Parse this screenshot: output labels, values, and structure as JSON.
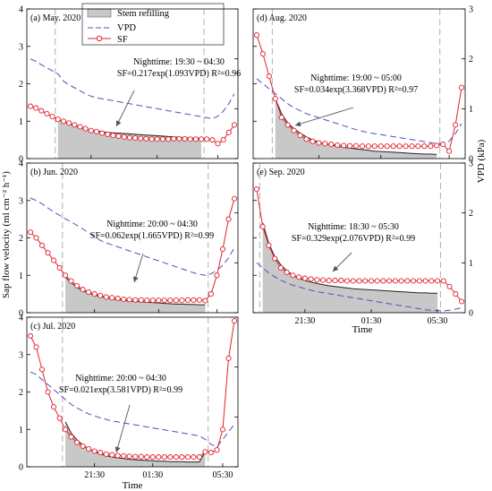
{
  "figure": {
    "y_left_label": "Sap flow velocity (ml cm⁻² h⁻¹)",
    "y_right_label": "VPD (kPa)",
    "x_label": "Time",
    "x_ticks": [
      "21:30",
      "01:30",
      "05:30"
    ],
    "legend": {
      "refill": "Stem refilling",
      "vpd": "VPD",
      "sf": "SF"
    },
    "colors": {
      "vpd": "#5050b8",
      "sf": "#e0202a",
      "refill_fill": "#c8c8c8",
      "night_boundary": "#b0b0b0"
    }
  },
  "chart_data": [
    {
      "type": "line",
      "panel": "(a) May. 2020",
      "night_text": "Nighttime: 19:30 ~ 04:30",
      "equation": "SF=0.217exp(1.093VPD)  R²=0.96",
      "y_left_lim": [
        0,
        4
      ],
      "y_right_lim": [
        0,
        3
      ],
      "night_start": 4.5,
      "night_end": 31.5,
      "x_count": 38,
      "series": [
        {
          "name": "VPD",
          "axis": "right",
          "values": [
            2.0,
            1.95,
            1.88,
            1.82,
            1.76,
            1.7,
            1.55,
            1.48,
            1.42,
            1.36,
            1.3,
            1.25,
            1.22,
            1.2,
            1.18,
            1.16,
            1.14,
            1.12,
            1.1,
            1.08,
            1.06,
            1.04,
            1.02,
            1.0,
            0.98,
            0.96,
            0.94,
            0.92,
            0.9,
            0.88,
            0.86,
            0.84,
            0.82,
            0.8,
            0.85,
            0.95,
            1.1,
            1.3
          ]
        },
        {
          "name": "SF",
          "axis": "left",
          "values": [
            1.4,
            1.35,
            1.28,
            1.2,
            1.12,
            1.05,
            1.0,
            0.95,
            0.9,
            0.85,
            0.8,
            0.75,
            0.72,
            0.68,
            0.65,
            0.62,
            0.6,
            0.58,
            0.56,
            0.55,
            0.54,
            0.53,
            0.52,
            0.52,
            0.52,
            0.52,
            0.53,
            0.53,
            0.53,
            0.52,
            0.52,
            0.52,
            0.52,
            0.5,
            0.4,
            0.5,
            0.7,
            0.9
          ]
        },
        {
          "name": "SF fit",
          "axis": "left",
          "values": [
            1.22,
            1.2,
            1.16,
            1.12,
            1.08,
            1.04,
            0.99,
            0.93,
            0.88,
            0.83,
            0.79,
            0.76,
            0.74,
            0.72,
            0.7,
            0.69,
            0.68,
            0.67,
            0.66,
            0.65,
            0.64,
            0.63,
            0.62,
            0.61,
            0.6,
            0.59,
            0.58,
            0.57,
            0.56,
            0.55,
            0.55,
            0.54,
            0.54,
            0.54,
            0.56,
            0.6,
            0.7,
            0.9
          ]
        }
      ]
    },
    {
      "type": "line",
      "panel": "(b) Jun. 2020",
      "night_text": "Nighttime: 20:00 ~ 04:30",
      "equation": "SF=0.062exp(1.665VPD)  R²=0.99",
      "y_left_lim": [
        0,
        4
      ],
      "y_right_lim": [
        0,
        3
      ],
      "night_start": 5.5,
      "night_end": 30.5,
      "x_count": 36,
      "series": [
        {
          "name": "VPD",
          "axis": "right",
          "values": [
            2.3,
            2.25,
            2.18,
            2.1,
            2.02,
            1.95,
            1.88,
            1.82,
            1.75,
            1.68,
            1.6,
            1.52,
            1.45,
            1.4,
            1.36,
            1.32,
            1.28,
            1.24,
            1.2,
            1.16,
            1.12,
            1.08,
            1.04,
            1.0,
            0.96,
            0.92,
            0.88,
            0.84,
            0.8,
            0.77,
            0.75,
            0.78,
            0.85,
            0.95,
            1.1,
            1.3
          ]
        },
        {
          "name": "SF",
          "axis": "left",
          "values": [
            2.15,
            2.0,
            1.8,
            1.6,
            1.4,
            1.2,
            1.0,
            0.85,
            0.72,
            0.62,
            0.55,
            0.5,
            0.46,
            0.42,
            0.4,
            0.38,
            0.36,
            0.35,
            0.34,
            0.34,
            0.33,
            0.33,
            0.33,
            0.33,
            0.33,
            0.33,
            0.33,
            0.34,
            0.34,
            0.34,
            0.32,
            0.5,
            1.0,
            1.7,
            2.5,
            3.05
          ]
        },
        {
          "name": "SF fit",
          "axis": "left",
          "values": [
            2.15,
            2.0,
            1.8,
            1.6,
            1.4,
            1.2,
            0.95,
            0.8,
            0.68,
            0.58,
            0.52,
            0.47,
            0.43,
            0.4,
            0.37,
            0.35,
            0.33,
            0.31,
            0.3,
            0.29,
            0.28,
            0.27,
            0.26,
            0.25,
            0.24,
            0.23,
            0.23,
            0.22,
            0.22,
            0.21,
            0.21,
            0.5,
            1.0,
            1.7,
            2.5,
            3.05
          ]
        }
      ]
    },
    {
      "type": "line",
      "panel": "(c) Jul. 2020",
      "night_text": "Nighttime: 20:00 ~ 04:30",
      "equation": "SF=0.021exp(3.581VPD)  R²=0.99",
      "y_left_lim": [
        0,
        4
      ],
      "y_right_lim": [
        0,
        3
      ],
      "night_start": 5.5,
      "night_end": 30.5,
      "x_count": 36,
      "x_tick_idx": [
        11,
        21,
        33
      ],
      "series": [
        {
          "name": "VPD",
          "axis": "right",
          "values": [
            1.9,
            1.85,
            1.75,
            1.65,
            1.55,
            1.45,
            1.35,
            1.25,
            1.18,
            1.12,
            1.06,
            1.02,
            0.98,
            0.95,
            0.92,
            0.9,
            0.88,
            0.86,
            0.84,
            0.82,
            0.8,
            0.78,
            0.76,
            0.74,
            0.72,
            0.7,
            0.68,
            0.66,
            0.64,
            0.62,
            0.55,
            0.45,
            0.4,
            0.55,
            0.7,
            0.85
          ]
        },
        {
          "name": "SF",
          "axis": "left",
          "values": [
            3.5,
            3.2,
            2.6,
            2.0,
            1.6,
            1.3,
            1.0,
            0.8,
            0.65,
            0.55,
            0.48,
            0.42,
            0.38,
            0.34,
            0.32,
            0.3,
            0.29,
            0.28,
            0.27,
            0.27,
            0.26,
            0.26,
            0.26,
            0.26,
            0.26,
            0.26,
            0.26,
            0.26,
            0.26,
            0.26,
            0.4,
            0.38,
            0.45,
            1.0,
            2.9,
            3.9
          ]
        },
        {
          "name": "SF fit",
          "axis": "left",
          "values": [
            3.5,
            3.2,
            2.6,
            2.0,
            1.6,
            1.3,
            1.2,
            0.9,
            0.72,
            0.58,
            0.48,
            0.4,
            0.34,
            0.3,
            0.26,
            0.24,
            0.22,
            0.2,
            0.19,
            0.18,
            0.17,
            0.16,
            0.15,
            0.15,
            0.14,
            0.14,
            0.14,
            0.13,
            0.13,
            0.13,
            0.4,
            0.38,
            0.45,
            1.0,
            2.9,
            3.9
          ]
        }
      ]
    },
    {
      "type": "line",
      "panel": "(d) Aug. 2020",
      "night_text": "Nighttime: 19:00 ~ 05:00",
      "equation": "SF=0.034exp(3.368VPD)  R²=0.97",
      "y_left_lim": [
        0,
        4
      ],
      "y_right_lim": [
        0,
        3
      ],
      "night_start": 2.5,
      "night_end": 29.5,
      "x_count": 34,
      "series": [
        {
          "name": "VPD",
          "axis": "right",
          "values": [
            1.6,
            1.5,
            1.4,
            1.3,
            1.2,
            1.1,
            1.02,
            0.96,
            0.9,
            0.86,
            0.82,
            0.78,
            0.74,
            0.7,
            0.66,
            0.62,
            0.58,
            0.55,
            0.52,
            0.5,
            0.48,
            0.46,
            0.44,
            0.42,
            0.4,
            0.38,
            0.36,
            0.34,
            0.32,
            0.3,
            0.3,
            0.35,
            0.5,
            0.7
          ]
        },
        {
          "name": "SF",
          "axis": "left",
          "values": [
            3.3,
            2.8,
            2.2,
            1.6,
            1.1,
            0.9,
            0.75,
            0.62,
            0.52,
            0.46,
            0.42,
            0.4,
            0.38,
            0.36,
            0.35,
            0.34,
            0.34,
            0.33,
            0.33,
            0.33,
            0.33,
            0.33,
            0.33,
            0.33,
            0.33,
            0.33,
            0.33,
            0.33,
            0.33,
            0.35,
            0.38,
            0.2,
            0.9,
            1.9
          ]
        },
        {
          "name": "SF fit",
          "axis": "left",
          "values": [
            3.3,
            2.8,
            2.2,
            1.6,
            1.2,
            0.95,
            0.8,
            0.68,
            0.58,
            0.5,
            0.44,
            0.4,
            0.36,
            0.33,
            0.3,
            0.28,
            0.26,
            0.24,
            0.22,
            0.2,
            0.19,
            0.18,
            0.17,
            0.16,
            0.15,
            0.14,
            0.13,
            0.12,
            0.12,
            0.11,
            0.38,
            0.2,
            0.9,
            1.9
          ]
        }
      ]
    },
    {
      "type": "line",
      "panel": "(e) Sep. 2020",
      "night_text": "Nighttime: 18:30 ~ 05:30",
      "equation": "SF=0.329exp(2.076VPD)  R²=0.99",
      "y_left_lim": [
        0,
        4
      ],
      "y_right_lim": [
        0,
        3
      ],
      "night_start": 0.5,
      "night_end": 30.5,
      "x_count": 35,
      "x_tick_idx": [
        8,
        19,
        30
      ],
      "series": [
        {
          "name": "VPD",
          "axis": "right",
          "values": [
            1.0,
            0.9,
            0.8,
            0.72,
            0.65,
            0.6,
            0.55,
            0.52,
            0.48,
            0.45,
            0.42,
            0.4,
            0.38,
            0.36,
            0.34,
            0.32,
            0.3,
            0.28,
            0.26,
            0.24,
            0.22,
            0.2,
            0.18,
            0.16,
            0.14,
            0.12,
            0.1,
            0.08,
            0.06,
            0.05,
            0.04,
            0.04,
            0.05,
            0.07,
            0.1
          ]
        },
        {
          "name": "SF",
          "axis": "left",
          "values": [
            3.3,
            2.3,
            1.8,
            1.45,
            1.2,
            1.08,
            1.0,
            0.95,
            0.92,
            0.9,
            0.88,
            0.87,
            0.86,
            0.86,
            0.86,
            0.85,
            0.85,
            0.85,
            0.85,
            0.85,
            0.85,
            0.85,
            0.85,
            0.85,
            0.85,
            0.85,
            0.85,
            0.85,
            0.85,
            0.85,
            0.85,
            0.85,
            0.7,
            0.5,
            0.3
          ]
        },
        {
          "name": "SF fit",
          "axis": "left",
          "values": [
            3.3,
            2.4,
            1.85,
            1.5,
            1.28,
            1.12,
            1.0,
            0.92,
            0.86,
            0.82,
            0.78,
            0.75,
            0.72,
            0.7,
            0.68,
            0.66,
            0.64,
            0.63,
            0.62,
            0.61,
            0.6,
            0.59,
            0.58,
            0.57,
            0.56,
            0.55,
            0.54,
            0.53,
            0.53,
            0.52,
            0.52,
            0.85,
            0.7,
            0.5,
            0.3
          ]
        }
      ]
    }
  ]
}
